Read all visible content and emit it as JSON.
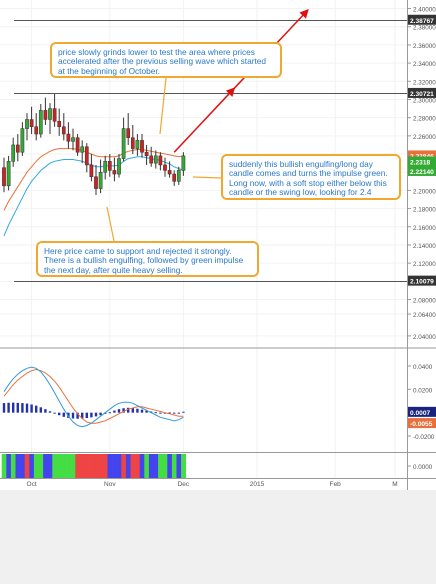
{
  "chart_data": [
    {
      "type": "candlestick",
      "panel": "price",
      "y_axis_ticks": [
        "2.40000",
        "2.38000",
        "2.36000",
        "2.34000",
        "2.32000",
        "2.30000",
        "2.28000",
        "2.26000",
        "2.24000",
        "2.22000",
        "2.20000",
        "2.18000",
        "2.16000",
        "2.14000",
        "2.12000",
        "2.10000",
        "2.08000",
        "2.06400",
        "2.04000"
      ],
      "ylim": [
        2.03,
        2.405
      ],
      "price_labels": [
        {
          "value": 2.38767,
          "text": "2.38767",
          "style": "dark"
        },
        {
          "value": 2.30721,
          "text": "2.30721",
          "style": "dark"
        },
        {
          "value": 2.23846,
          "text": "2.23846",
          "style": "orange"
        },
        {
          "value": 2.2318,
          "text": "2.2318",
          "style": "green"
        },
        {
          "value": 2.2214,
          "text": "2.22140",
          "style": "green"
        },
        {
          "value": 2.10079,
          "text": "2.10079",
          "style": "dark"
        }
      ],
      "horizontal_levels": [
        2.38767,
        2.30721,
        2.10079
      ],
      "colors": {
        "up": "#33aa33",
        "down": "#cc2222",
        "ema_fast": "#33aadd",
        "ema_slow": "#e8703a",
        "arrow": "#dd1111"
      },
      "candles": [
        {
          "o": 2.225,
          "h": 2.236,
          "l": 2.198,
          "c": 2.205
        },
        {
          "o": 2.205,
          "h": 2.238,
          "l": 2.2,
          "c": 2.232
        },
        {
          "o": 2.232,
          "h": 2.258,
          "l": 2.226,
          "c": 2.25
        },
        {
          "o": 2.25,
          "h": 2.262,
          "l": 2.232,
          "c": 2.242
        },
        {
          "o": 2.242,
          "h": 2.275,
          "l": 2.238,
          "c": 2.268
        },
        {
          "o": 2.268,
          "h": 2.285,
          "l": 2.255,
          "c": 2.278
        },
        {
          "o": 2.278,
          "h": 2.292,
          "l": 2.262,
          "c": 2.27
        },
        {
          "o": 2.27,
          "h": 2.285,
          "l": 2.255,
          "c": 2.262
        },
        {
          "o": 2.262,
          "h": 2.295,
          "l": 2.258,
          "c": 2.288
        },
        {
          "o": 2.288,
          "h": 2.302,
          "l": 2.272,
          "c": 2.278
        },
        {
          "o": 2.278,
          "h": 2.296,
          "l": 2.262,
          "c": 2.29
        },
        {
          "o": 2.29,
          "h": 2.306,
          "l": 2.27,
          "c": 2.276
        },
        {
          "o": 2.276,
          "h": 2.29,
          "l": 2.26,
          "c": 2.27
        },
        {
          "o": 2.27,
          "h": 2.285,
          "l": 2.255,
          "c": 2.262
        },
        {
          "o": 2.262,
          "h": 2.275,
          "l": 2.246,
          "c": 2.254
        },
        {
          "o": 2.254,
          "h": 2.268,
          "l": 2.244,
          "c": 2.258
        },
        {
          "o": 2.258,
          "h": 2.262,
          "l": 2.238,
          "c": 2.242
        },
        {
          "o": 2.242,
          "h": 2.255,
          "l": 2.23,
          "c": 2.248
        },
        {
          "o": 2.248,
          "h": 2.252,
          "l": 2.22,
          "c": 2.228
        },
        {
          "o": 2.228,
          "h": 2.24,
          "l": 2.21,
          "c": 2.215
        },
        {
          "o": 2.215,
          "h": 2.228,
          "l": 2.195,
          "c": 2.202
        },
        {
          "o": 2.202,
          "h": 2.234,
          "l": 2.197,
          "c": 2.22
        },
        {
          "o": 2.22,
          "h": 2.238,
          "l": 2.212,
          "c": 2.232
        },
        {
          "o": 2.232,
          "h": 2.24,
          "l": 2.215,
          "c": 2.222
        },
        {
          "o": 2.222,
          "h": 2.236,
          "l": 2.21,
          "c": 2.218
        },
        {
          "o": 2.218,
          "h": 2.24,
          "l": 2.214,
          "c": 2.235
        },
        {
          "o": 2.235,
          "h": 2.28,
          "l": 2.232,
          "c": 2.268
        },
        {
          "o": 2.268,
          "h": 2.285,
          "l": 2.25,
          "c": 2.258
        },
        {
          "o": 2.258,
          "h": 2.272,
          "l": 2.24,
          "c": 2.246
        },
        {
          "o": 2.246,
          "h": 2.262,
          "l": 2.238,
          "c": 2.255
        },
        {
          "o": 2.255,
          "h": 2.262,
          "l": 2.236,
          "c": 2.242
        },
        {
          "o": 2.242,
          "h": 2.25,
          "l": 2.228,
          "c": 2.238
        },
        {
          "o": 2.238,
          "h": 2.248,
          "l": 2.226,
          "c": 2.23
        },
        {
          "o": 2.23,
          "h": 2.244,
          "l": 2.224,
          "c": 2.238
        },
        {
          "o": 2.238,
          "h": 2.242,
          "l": 2.222,
          "c": 2.228
        },
        {
          "o": 2.228,
          "h": 2.236,
          "l": 2.215,
          "c": 2.222
        },
        {
          "o": 2.222,
          "h": 2.232,
          "l": 2.214,
          "c": 2.218
        },
        {
          "o": 2.218,
          "h": 2.222,
          "l": 2.205,
          "c": 2.21
        },
        {
          "o": 2.21,
          "h": 2.226,
          "l": 2.206,
          "c": 2.222
        },
        {
          "o": 2.222,
          "h": 2.242,
          "l": 2.216,
          "c": 2.238
        }
      ],
      "ema_fast": [
        2.15,
        2.162,
        2.172,
        2.182,
        2.192,
        2.202,
        2.21,
        2.216,
        2.222,
        2.226,
        2.23,
        2.232,
        2.233,
        2.234,
        2.234,
        2.234,
        2.233,
        2.232,
        2.23,
        2.228,
        2.226,
        2.226,
        2.227,
        2.227,
        2.227,
        2.228,
        2.232,
        2.235,
        2.236,
        2.237,
        2.237,
        2.236,
        2.235,
        2.234,
        2.233,
        2.231,
        2.229,
        2.226,
        2.224,
        2.222
      ],
      "ema_slow": [
        2.178,
        2.188,
        2.196,
        2.204,
        2.212,
        2.22,
        2.226,
        2.232,
        2.237,
        2.24,
        2.243,
        2.245,
        2.246,
        2.246,
        2.246,
        2.246,
        2.245,
        2.244,
        2.242,
        2.24,
        2.238,
        2.237,
        2.237,
        2.237,
        2.237,
        2.238,
        2.241,
        2.243,
        2.244,
        2.245,
        2.245,
        2.244,
        2.243,
        2.242,
        2.241,
        2.24,
        2.239,
        2.238,
        2.237,
        2.238
      ],
      "projection_arrows": [
        {
          "from": [
            37,
            2.242
          ],
          "to": [
            50,
            2.312
          ]
        },
        {
          "from": [
            50,
            2.312
          ],
          "to": [
            66,
            2.398
          ]
        }
      ]
    },
    {
      "type": "macd",
      "panel": "indicator",
      "y_axis_ticks": [
        "0.0400",
        "0.0200",
        "-0.0200"
      ],
      "ylim": [
        -0.032,
        0.052
      ],
      "value_labels": [
        {
          "value": 0.0007,
          "text": "0.0007",
          "style": "navy"
        },
        {
          "value": -0.0055,
          "text": "-0.0055",
          "style": "orange"
        }
      ],
      "histogram": [
        0.0082,
        0.0085,
        0.0086,
        0.0084,
        0.0082,
        0.0078,
        0.007,
        0.006,
        0.0046,
        0.003,
        0.0012,
        -0.0006,
        -0.0022,
        -0.0036,
        -0.0045,
        -0.005,
        -0.0052,
        -0.005,
        -0.0046,
        -0.004,
        -0.0032,
        -0.0022,
        -0.001,
        0.0004,
        0.0018,
        0.003,
        0.0038,
        0.0042,
        0.004,
        0.0034,
        0.0026,
        0.0018,
        0.001,
        0.0004,
        0.0,
        -0.0002,
        0.0002,
        -0.0004,
        -0.0006,
        0.0008
      ],
      "macd_line": [
        0.018,
        0.024,
        0.029,
        0.033,
        0.036,
        0.038,
        0.039,
        0.038,
        0.035,
        0.03,
        0.024,
        0.017,
        0.01,
        0.003,
        -0.003,
        -0.008,
        -0.011,
        -0.012,
        -0.011,
        -0.009,
        -0.006,
        -0.003,
        0.0,
        0.003,
        0.006,
        0.008,
        0.009,
        0.009,
        0.008,
        0.006,
        0.004,
        0.002,
        0.0,
        -0.002,
        -0.004,
        -0.005,
        -0.006,
        -0.007,
        -0.006,
        -0.004
      ],
      "signal_line": [
        0.014,
        0.019,
        0.024,
        0.028,
        0.031,
        0.034,
        0.036,
        0.037,
        0.036,
        0.034,
        0.031,
        0.027,
        0.022,
        0.016,
        0.01,
        0.004,
        -0.001,
        -0.005,
        -0.008,
        -0.009,
        -0.009,
        -0.008,
        -0.007,
        -0.005,
        -0.003,
        -0.001,
        0.001,
        0.003,
        0.004,
        0.005,
        0.005,
        0.004,
        0.003,
        0.002,
        0.001,
        0.0,
        -0.001,
        -0.002,
        -0.003,
        -0.003
      ],
      "colors": {
        "histogram": "#2233aa",
        "macd": "#3399dd",
        "signal": "#e8703a"
      }
    },
    {
      "type": "color_bars",
      "panel": "impulse",
      "y_axis_ticks": [
        "0.0000"
      ],
      "bars": [
        "green",
        "blue",
        "green",
        "blue",
        "blue",
        "red",
        "blue",
        "green",
        "green",
        "blue",
        "blue",
        "green",
        "green",
        "green",
        "green",
        "green",
        "red",
        "red",
        "red",
        "red",
        "red",
        "red",
        "red",
        "blue",
        "blue",
        "blue",
        "red",
        "blue",
        "red",
        "red",
        "blue",
        "green",
        "blue",
        "blue",
        "green",
        "green",
        "blue",
        "green",
        "blue",
        "green"
      ],
      "colors": {
        "green": "#44dd44",
        "blue": "#4444ee",
        "red": "#ee4444"
      }
    }
  ],
  "x_axis_labels": [
    {
      "text": "Oct",
      "bar": 6
    },
    {
      "text": "Nov",
      "bar": 23
    },
    {
      "text": "Dec",
      "bar": 39
    },
    {
      "text": "2015",
      "bar": 55
    },
    {
      "text": "Feb",
      "bar": 72
    },
    {
      "text": "M",
      "bar": 85
    }
  ],
  "annotations": [
    {
      "id": "top",
      "text": "price slowly grinds lower to test the area where prices accelerated after the previous selling wave which started at the beginning of October."
    },
    {
      "id": "right",
      "text": "suddenly this bullish engulfing/long day candle comes and turns the impulse green. Long now, with a soft stop either below this candle or the swing low, looking for 2.4"
    },
    {
      "id": "bottom",
      "text": "Here price came to support and rejected it strongly. There is a bullish engulfing, followed by green impulse the next day, after quite heavy selling."
    }
  ]
}
